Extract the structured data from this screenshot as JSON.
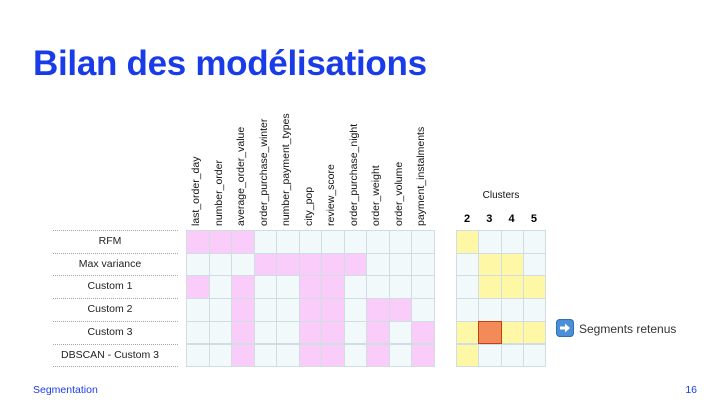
{
  "title": "Bilan des modélisations",
  "columns": [
    "last_order_day",
    "number_order",
    "average_order_value",
    "order_purchase_winter",
    "number_payment_types",
    "city_pop",
    "review_score",
    "order_purchase_night",
    "order_weight",
    "order_volume",
    "payment_instalments"
  ],
  "rows": [
    {
      "label": "RFM",
      "features": [
        1,
        1,
        1,
        0,
        0,
        0,
        0,
        0,
        0,
        0,
        0
      ],
      "clusters": [
        1,
        0,
        0,
        0
      ]
    },
    {
      "label": "Max variance",
      "features": [
        0,
        0,
        0,
        1,
        1,
        1,
        1,
        1,
        0,
        0,
        0
      ],
      "clusters": [
        0,
        1,
        1,
        0
      ]
    },
    {
      "label": "Custom 1",
      "features": [
        1,
        0,
        1,
        0,
        0,
        1,
        1,
        0,
        0,
        0,
        0
      ],
      "clusters": [
        0,
        1,
        1,
        1
      ]
    },
    {
      "label": "Custom 2",
      "features": [
        0,
        0,
        1,
        0,
        0,
        1,
        1,
        0,
        1,
        1,
        0
      ],
      "clusters": [
        0,
        0,
        0,
        0
      ]
    },
    {
      "label": "Custom 3",
      "features": [
        0,
        0,
        1,
        0,
        0,
        1,
        1,
        0,
        1,
        0,
        1
      ],
      "clusters": [
        1,
        2,
        1,
        1
      ]
    },
    {
      "label": "DBSCAN - Custom 3",
      "features": [
        0,
        0,
        1,
        0,
        0,
        1,
        1,
        0,
        1,
        0,
        1
      ],
      "clusters": [
        1,
        0,
        0,
        0
      ]
    }
  ],
  "clusters": {
    "title": "Clusters",
    "numbers": [
      "2",
      "3",
      "4",
      "5"
    ]
  },
  "legend": {
    "icon": "right-arrow-icon",
    "label": "Segments retenus"
  },
  "footer": {
    "left": "Segmentation",
    "page": "16"
  },
  "colors": {
    "title": "#1a3ce8",
    "feature_on": "#f9ccf9",
    "feature_off": "#f1f9fb",
    "cluster_on": "#fdf7a6",
    "cluster_selected": "#f28a5a",
    "cluster_selected_border": "#c2410c"
  }
}
